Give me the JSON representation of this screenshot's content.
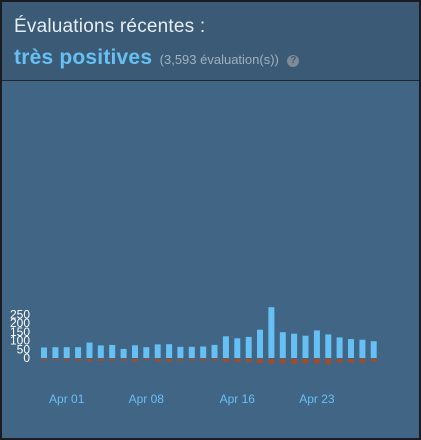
{
  "header": {
    "title": "Évaluations récentes :",
    "rating": "très positives",
    "count": "(3,593 évaluation(s))",
    "help_icon": "help-icon",
    "help_glyph": "?"
  },
  "colors": {
    "positive": "#66c0f4",
    "negative": "#a34c25",
    "header_bg": "#3b5a75",
    "chart_bg": "#406585",
    "rating_text": "#66c0f4"
  },
  "chart_data": {
    "type": "bar",
    "x_tick_labels": [
      "Apr 01",
      "Apr 08",
      "Apr 16",
      "Apr 23"
    ],
    "y_tick_labels": [
      "0",
      "50",
      "100",
      "150",
      "200",
      "250"
    ],
    "ylim": [
      -30,
      300
    ],
    "grid": false,
    "series": [
      {
        "values": [
          60,
          62,
          62,
          62,
          88,
          72,
          75,
          52,
          73,
          62,
          78,
          79,
          64,
          64,
          66,
          75,
          124,
          113,
          121,
          162,
          291,
          148,
          139,
          128,
          158,
          135,
          118,
          108,
          105,
          96
        ]
      },
      {
        "values": [
          -8,
          -7,
          -10,
          -10,
          -13,
          -12,
          -10,
          -9,
          -14,
          -7,
          -14,
          -15,
          -10,
          -10,
          -10,
          -10,
          -17,
          -18,
          -18,
          -24,
          -26,
          -24,
          -28,
          -24,
          -25,
          -29,
          -20,
          -20,
          -22,
          -16
        ]
      }
    ]
  }
}
